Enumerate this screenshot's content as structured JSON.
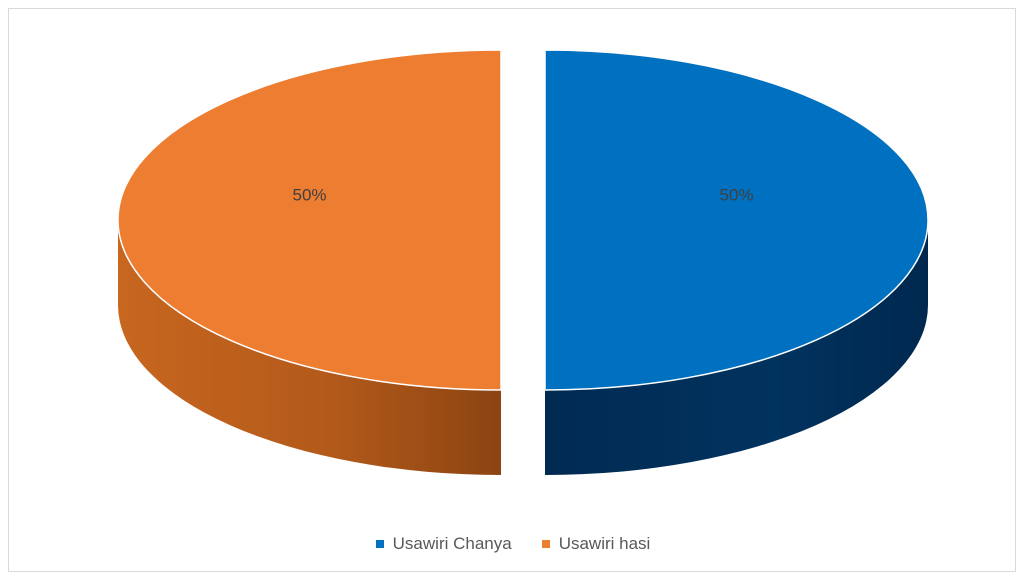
{
  "chart_data": {
    "type": "pie",
    "title": "",
    "series": [
      {
        "name": "Usawiri Chanya",
        "value": 50,
        "label": "50%",
        "color": "#0070C0"
      },
      {
        "name": "Usawiri hasi",
        "value": 50,
        "label": "50%",
        "color": "#ED7D31"
      }
    ],
    "legend_position": "bottom",
    "style": "3d-exploded"
  }
}
